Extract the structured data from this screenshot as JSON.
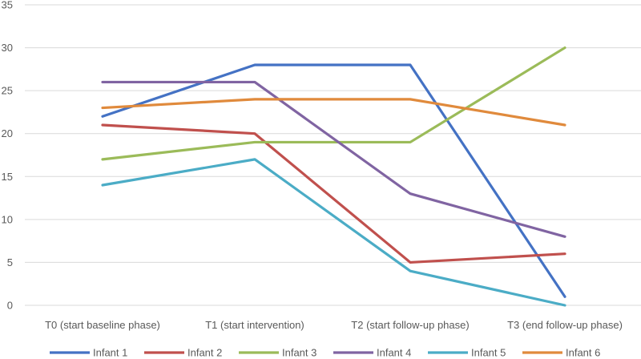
{
  "chart_data": {
    "type": "line",
    "title": "",
    "xlabel": "",
    "ylabel": "",
    "categories": [
      "T0 (start baseline phase)",
      "T1 (start intervention)",
      "T2 (start follow-up phase)",
      "T3 (end follow-up phase)"
    ],
    "ylim": [
      0,
      35
    ],
    "yticks": [
      0,
      5,
      10,
      15,
      20,
      25,
      30,
      35
    ],
    "grid": "horizontal",
    "legend_position": "bottom",
    "series": [
      {
        "name": "Infant 1",
        "color": "#4472c4",
        "values": [
          22,
          28,
          28,
          1
        ]
      },
      {
        "name": "Infant 2",
        "color": "#c0504d",
        "values": [
          21,
          20,
          5,
          6
        ]
      },
      {
        "name": "Infant 3",
        "color": "#9bbb59",
        "values": [
          17,
          19,
          19,
          30
        ]
      },
      {
        "name": "Infant 4",
        "color": "#8064a2",
        "values": [
          26,
          26,
          13,
          8
        ]
      },
      {
        "name": "Infant 5",
        "color": "#4bacc6",
        "values": [
          14,
          17,
          4,
          0
        ]
      },
      {
        "name": "Infant 6",
        "color": "#e08a3c",
        "values": [
          23,
          24,
          24,
          21
        ]
      }
    ]
  }
}
